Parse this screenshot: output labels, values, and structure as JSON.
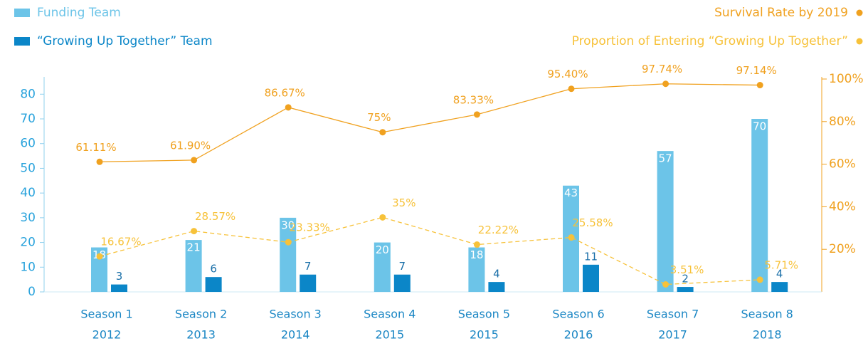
{
  "chart_data": {
    "type": "bar",
    "categories": [
      "Season 1",
      "Season 2",
      "Season 3",
      "Season 4",
      "Season 5",
      "Season 6",
      "Season 7",
      "Season 8"
    ],
    "category_years": [
      "2012",
      "2013",
      "2014",
      "2015",
      "2015",
      "2016",
      "2017",
      "2018"
    ],
    "series": [
      {
        "name": "Funding Team",
        "color": "#6cc4e8",
        "values": [
          18,
          21,
          30,
          20,
          18,
          43,
          57,
          70
        ]
      },
      {
        "name": "“Growing Up Together” Team",
        "color": "#0b86c8",
        "values": [
          3,
          6,
          7,
          7,
          4,
          11,
          2,
          4
        ]
      },
      {
        "name": "Survival Rate by 2019",
        "type": "line",
        "axis": "y2",
        "color": "#f0a11f",
        "style": "solid",
        "values": [
          61.11,
          61.9,
          86.67,
          75,
          83.33,
          95.4,
          97.74,
          97.14
        ],
        "value_labels": [
          "61.11%",
          "61.90%",
          "86.67%",
          "75%",
          "83.33%",
          "95.40%",
          "97.74%",
          "97.14%"
        ]
      },
      {
        "name": "Proportion of Entering “Growing Up Together”",
        "type": "line",
        "axis": "y2",
        "color": "#f7c23a",
        "style": "dashed",
        "values": [
          16.67,
          28.57,
          23.33,
          35,
          22.22,
          25.58,
          3.51,
          5.71
        ],
        "value_labels": [
          "16.67%",
          "28.57%",
          "23.33%",
          "35%",
          "22.22%",
          "25.58%",
          "3.51%",
          "5.71%"
        ]
      }
    ],
    "ylim": [
      0,
      87
    ],
    "yticks": [
      0,
      10,
      20,
      30,
      40,
      50,
      60,
      70,
      80
    ],
    "y2lim": [
      0,
      101
    ],
    "y2ticks": [
      {
        "value": 20,
        "label": "20%"
      },
      {
        "value": 40,
        "label": "40%"
      },
      {
        "value": 60,
        "label": "60%"
      },
      {
        "value": 80,
        "label": "80%"
      },
      {
        "value": 100,
        "label": "100%"
      }
    ]
  }
}
